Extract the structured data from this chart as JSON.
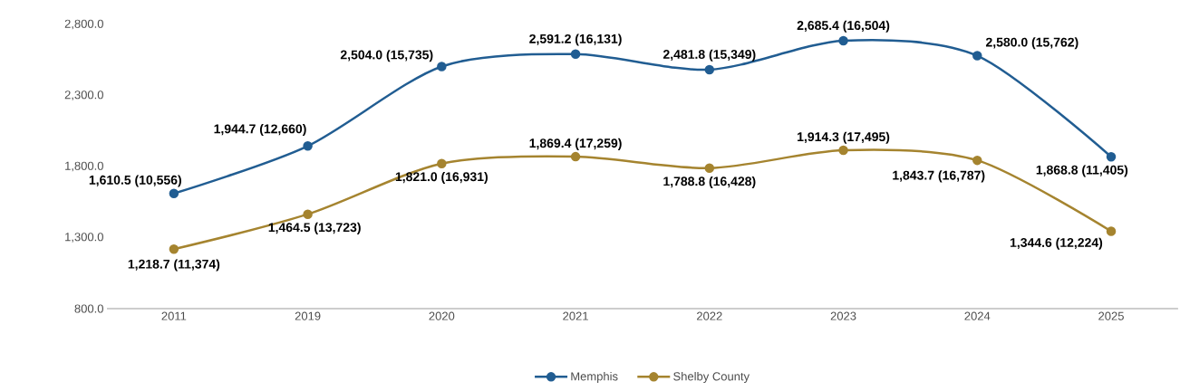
{
  "chart_data": {
    "type": "line",
    "categories": [
      "2011",
      "2019",
      "2020",
      "2021",
      "2022",
      "2023",
      "2024",
      "2025"
    ],
    "series": [
      {
        "name": "Memphis",
        "color": "#215d92",
        "values": [
          1610.5,
          1944.7,
          2504.0,
          2591.2,
          2481.8,
          2685.4,
          2580.0,
          1868.8
        ],
        "value_labels": [
          "1,610.5 (10,556)",
          "1,944.7 (12,660)",
          "2,504.0 (15,735)",
          "2,591.2 (16,131)",
          "2,481.8 (15,349)",
          "2,685.4 (16,504)",
          "2,580.0 (15,762)",
          "1,868.8 (11,405)"
        ]
      },
      {
        "name": "Shelby County",
        "color": "#a5842f",
        "values": [
          1218.7,
          1464.5,
          1821.0,
          1869.4,
          1788.8,
          1914.3,
          1843.7,
          1344.6
        ],
        "value_labels": [
          "1,218.7 (11,374)",
          "1,464.5 (13,723)",
          "1,821.0 (16,931)",
          "1,869.4 (17,259)",
          "1,788.8 (16,428)",
          "1,914.3 (17,495)",
          "1,843.7 (16,787)",
          "1,344.6 (12,224)"
        ]
      }
    ],
    "ylim": [
      800,
      2800
    ],
    "yticks": [
      {
        "value": 800,
        "label": "800.0"
      },
      {
        "value": 1300,
        "label": "1,300.0"
      },
      {
        "value": 1800,
        "label": "1,800.0"
      },
      {
        "value": 2300,
        "label": "2,300.0"
      },
      {
        "value": 2800,
        "label": "2,800.0"
      }
    ],
    "grid": false,
    "legend": "bottom",
    "marker": "circle",
    "line_style": "solid"
  }
}
